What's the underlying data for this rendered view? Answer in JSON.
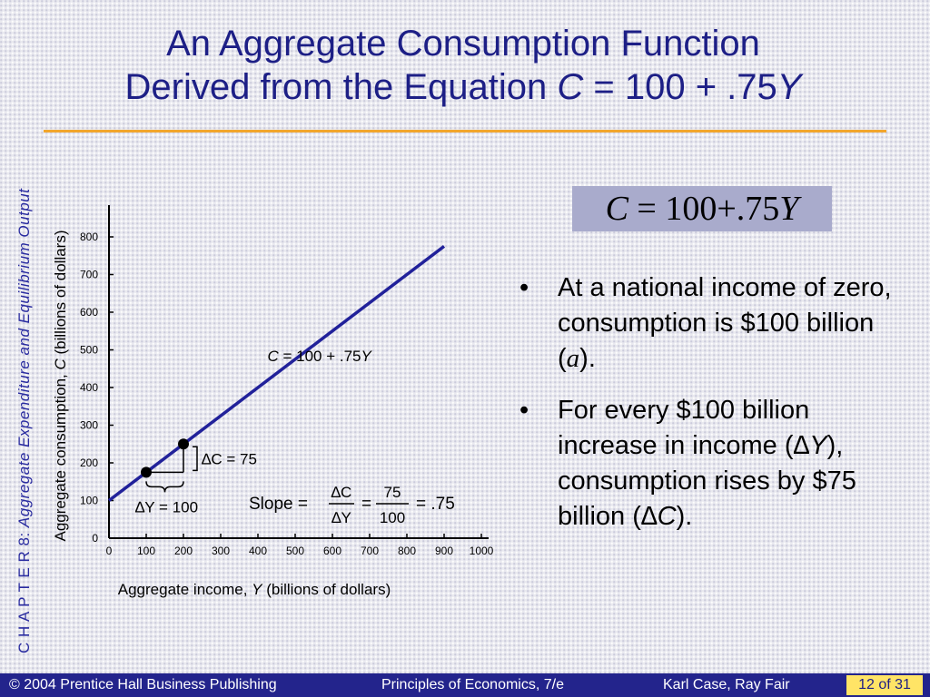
{
  "slide": {
    "title_line1": "An Aggregate Consumption Function",
    "title_line2_prefix": "Derived from the Equation ",
    "title_c": "C",
    "title_mid": " = 100 + .75",
    "title_y": "Y",
    "side_prefix": "C H A P T E R  8:  ",
    "side_label": "Aggregate Expenditure and Equilibrium Output",
    "formula": {
      "c": "C",
      "rest": " = 100+.75",
      "y": "Y"
    },
    "bullets": [
      {
        "parts": [
          "At a national income of zero, consumption is $100 billion (",
          "a",
          ")."
        ]
      },
      {
        "parts": [
          "For every $100 billion increase in income (",
          "∆Y",
          "), consumption rises by $75 billion (",
          "∆C",
          ")."
        ]
      }
    ],
    "bullet_symbol": "•",
    "footer": {
      "left": "© 2004 Prentice Hall Business Publishing",
      "center": "Principles of Economics, 7/e",
      "right": "Karl Case, Ray Fair",
      "page": "12 of 31"
    }
  },
  "chart_data": {
    "type": "line",
    "xlabel_prefix": "Aggregate income, ",
    "xlabel_var": "Y",
    "xlabel_suffix": " (billions of dollars)",
    "ylabel_prefix": "Aggregate consumption, ",
    "ylabel_var": "C",
    "ylabel_suffix": " (billions of dollars)",
    "xlim": [
      0,
      1000
    ],
    "ylim": [
      0,
      800
    ],
    "x_ticks": [
      0,
      100,
      200,
      300,
      400,
      500,
      600,
      700,
      800,
      900,
      1000
    ],
    "y_ticks": [
      0,
      100,
      200,
      300,
      400,
      500,
      600,
      700,
      800
    ],
    "series": [
      {
        "name": "C = 100 + .75Y",
        "x": [
          0,
          900
        ],
        "y": [
          100,
          775
        ],
        "color": "#21219a"
      }
    ],
    "points": [
      {
        "x": 100,
        "y": 175
      },
      {
        "x": 200,
        "y": 250
      }
    ],
    "annotations": {
      "delta_c": "∆C = 75",
      "delta_y": "∆Y = 100",
      "slope_label": "Slope =",
      "frac1_num": "∆C",
      "frac1_den": "∆Y",
      "equals": "=",
      "frac2_num": "75",
      "frac2_den": "100",
      "result": "= .75"
    },
    "grid": false
  }
}
